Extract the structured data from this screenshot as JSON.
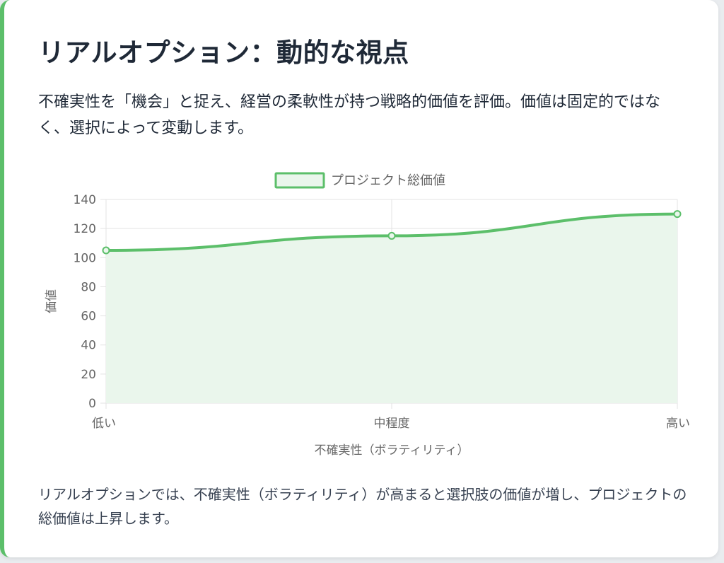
{
  "card": {
    "title": "リアルオプション：動的な視点",
    "description": "不確実性を「機会」と捉え、経営の柔軟性が持つ戦略的価値を評価。価値は固定的ではなく、選択によって変動します。",
    "footnote": "リアルオプションでは、不確実性（ボラティリティ）が高まると選択肢の価値が増し、プロジェクトの総価値は上昇します。"
  },
  "colors": {
    "accent": "#5cbf6a",
    "fill": "#eaf6ec",
    "grid": "#e3e3e3",
    "text": "#1f2937",
    "axis_text": "#666666"
  },
  "chart_data": {
    "type": "line",
    "categories": [
      "低い",
      "中程度",
      "高い"
    ],
    "series": [
      {
        "name": "プロジェクト総価値",
        "values": [
          105,
          115,
          130
        ]
      }
    ],
    "xlabel": "不確実性（ボラティリティ）",
    "ylabel": "価値",
    "ylim": [
      0,
      140
    ],
    "yticks": [
      0,
      20,
      40,
      60,
      80,
      100,
      120,
      140
    ],
    "fill": true,
    "grid": true,
    "legend_position": "top"
  }
}
